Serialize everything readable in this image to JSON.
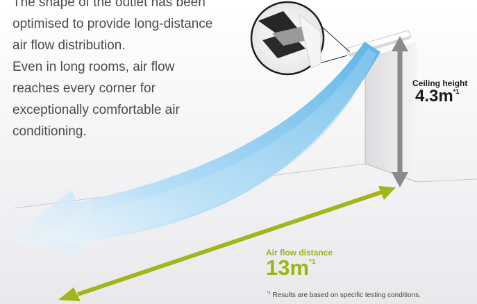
{
  "description": {
    "lines": [
      "The shape of the outlet has been",
      "optimised to provide long-distance",
      "air flow distribution.",
      "Even in long rooms, air flow",
      "reaches every corner for",
      "exceptionally comfortable air",
      "conditioning."
    ]
  },
  "ceiling": {
    "title": "Ceiling height",
    "value": "4.3m",
    "note_mark": "*1"
  },
  "distance": {
    "title": "Air flow distance",
    "value": "13m",
    "note_mark": "*1"
  },
  "footnote": {
    "mark": "*1",
    "text": "Results are based on specific testing conditions."
  },
  "colors": {
    "airflow": "#8fcbef",
    "distance_arrow": "#a3b51b",
    "height_arrow": "#8a8a8a",
    "label_green": "#9cb513"
  }
}
